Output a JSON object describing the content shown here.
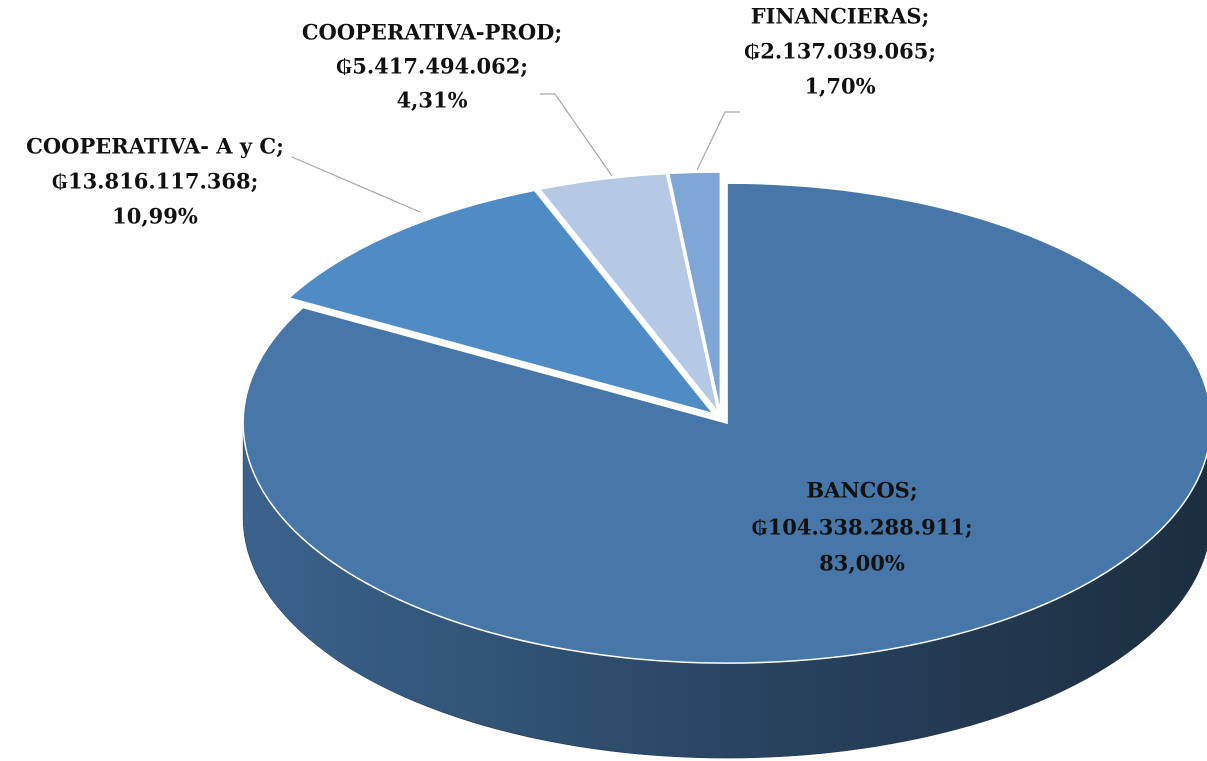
{
  "chart_data": {
    "type": "pie",
    "categories": [
      "BANCOS;",
      "COOPERATIVA- A y C;",
      "COOPERATIVA-PROD;",
      "FINANCIERAS;"
    ],
    "values": [
      104338288911,
      13816117368,
      5417494062,
      2137039065
    ],
    "value_labels": [
      "₲104.338.288.911;",
      "₲13.816.117.368;",
      "₲5.417.494.062;",
      "₲2.137.039.065;"
    ],
    "percents": [
      83,
      10.99,
      4.31,
      1.7
    ],
    "percent_labels": [
      "83,00%",
      "10,99%",
      "4,31%",
      "1,70%"
    ],
    "colors": [
      "#4677a8",
      "#4f8bc4",
      "#b5c9e5",
      "#7ea7d8"
    ]
  }
}
